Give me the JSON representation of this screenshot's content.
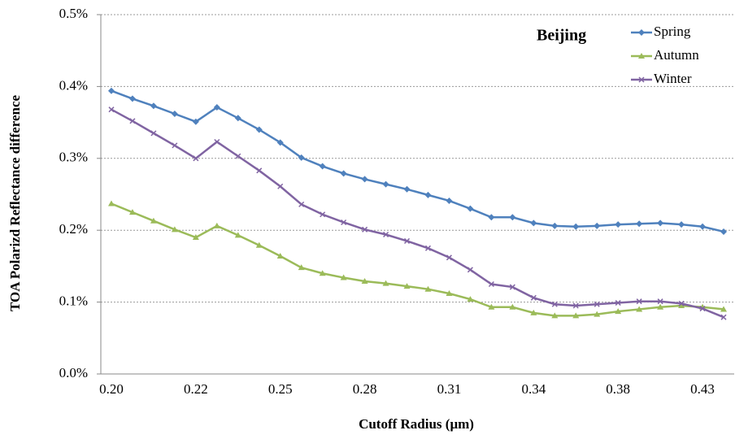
{
  "chart_data": {
    "type": "line",
    "annotation": "Beijing",
    "x_label": "Cutoff Radius (μm)",
    "y_label": "TOA Polarizd Reflectance difference",
    "categories": [
      "0.20",
      null,
      null,
      null,
      "0.22",
      null,
      null,
      null,
      "0.25",
      null,
      null,
      null,
      "0.28",
      null,
      null,
      null,
      "0.31",
      null,
      null,
      null,
      "0.34",
      null,
      null,
      null,
      "0.38",
      null,
      null,
      null,
      "0.43",
      null
    ],
    "series": [
      {
        "name": "Spring",
        "color": "#4f81bd",
        "marker": "diamond",
        "values": [
          0.394,
          0.383,
          0.373,
          0.362,
          0.351,
          0.371,
          0.356,
          0.34,
          0.322,
          0.301,
          0.289,
          0.279,
          0.271,
          0.264,
          0.257,
          0.249,
          0.241,
          0.23,
          0.218,
          0.218,
          0.21,
          0.206,
          0.205,
          0.206,
          0.208,
          0.209,
          0.21,
          0.208,
          0.205,
          0.198
        ]
      },
      {
        "name": "Autumn",
        "color": "#9bbb59",
        "marker": "triangle",
        "values": [
          0.237,
          0.225,
          0.213,
          0.201,
          0.19,
          0.206,
          0.193,
          0.179,
          0.164,
          0.148,
          0.14,
          0.134,
          0.129,
          0.126,
          0.122,
          0.118,
          0.112,
          0.104,
          0.093,
          0.093,
          0.085,
          0.081,
          0.081,
          0.083,
          0.087,
          0.09,
          0.093,
          0.095,
          0.093,
          0.09
        ]
      },
      {
        "name": "Winter",
        "color": "#8064a2",
        "marker": "x",
        "values": [
          0.368,
          0.352,
          0.335,
          0.318,
          0.3,
          0.323,
          0.303,
          0.283,
          0.261,
          0.236,
          0.222,
          0.211,
          0.201,
          0.194,
          0.185,
          0.175,
          0.162,
          0.145,
          0.125,
          0.121,
          0.106,
          0.097,
          0.095,
          0.097,
          0.099,
          0.101,
          0.101,
          0.098,
          0.091,
          0.079
        ]
      }
    ],
    "ylim": [
      0,
      0.5
    ],
    "yticks": [
      {
        "value": 0,
        "label": "0.0%"
      },
      {
        "value": 0.1,
        "label": "0.1%"
      },
      {
        "value": 0.2,
        "label": "0.2%"
      },
      {
        "value": 0.3,
        "label": "0.3%"
      },
      {
        "value": 0.4,
        "label": "0.4%"
      },
      {
        "value": 0.5,
        "label": "0.5%"
      }
    ],
    "grid": true,
    "legend": "top-right"
  }
}
